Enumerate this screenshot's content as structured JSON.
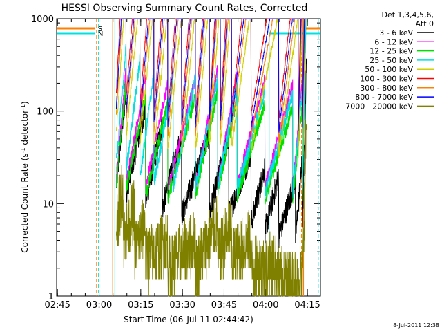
{
  "chart_data": {
    "type": "line",
    "title": "HESSI Observing Summary Count Rates, Corrected",
    "xlabel": "Start Time (06-Jul-11 02:44:42)",
    "ylabel_main": "Corrected Count Rate (s",
    "ylabel_sup1": "-1",
    "ylabel_mid": " detector",
    "ylabel_sup2": "-1",
    "ylabel_end": ")",
    "y_scale": "log",
    "ylim": [
      1,
      1000
    ],
    "xlim_minutes": [
      0,
      95
    ],
    "x_tick_labels": [
      "02:45",
      "03:00",
      "03:15",
      "03:30",
      "03:45",
      "04:00",
      "04:15"
    ],
    "x_tick_minutes": [
      0.3,
      15.3,
      30.3,
      45.3,
      60.3,
      75.3,
      90.3
    ],
    "y_tick_labels": [
      "1",
      "10",
      "100",
      "1000"
    ],
    "y_tick_values": [
      1,
      10,
      100,
      1000
    ],
    "legend_header": [
      "Det 1,3,4,5,6,",
      "Att 0"
    ],
    "legend_position": "right",
    "flags": [
      {
        "label": "S",
        "color": "#ff8000"
      },
      {
        "label": "N",
        "color": "#00e0e0"
      }
    ],
    "series": [
      {
        "name": "3 - 6 keV",
        "color": "#000000",
        "key": [
          17,
          14,
          11,
          9,
          7.5,
          7.5,
          7,
          5,
          4.2,
          4.2
        ],
        "profile": [
          [
            21.5,
            16
          ],
          [
            25,
            13
          ],
          [
            32,
            10.5
          ],
          [
            38,
            8.5
          ],
          [
            45,
            7.5
          ],
          [
            55,
            7.5
          ],
          [
            62,
            7.5
          ],
          [
            70,
            6
          ],
          [
            75,
            5
          ],
          [
            80,
            4.5
          ],
          [
            86,
            4.3
          ],
          [
            88.5,
            5.5
          ],
          [
            90,
            20
          ]
        ],
        "noise": 0.14
      },
      {
        "name": "6 - 12 keV",
        "color": "#ff00ff",
        "profile": [
          [
            21.5,
            20
          ],
          [
            25,
            17
          ],
          [
            32,
            15
          ],
          [
            40,
            14
          ],
          [
            50,
            15
          ],
          [
            58,
            17
          ],
          [
            65,
            16
          ],
          [
            75,
            15
          ],
          [
            85,
            14
          ],
          [
            88.5,
            15
          ],
          [
            90,
            50
          ]
        ],
        "noise": 0.07
      },
      {
        "name": "12 - 25 keV",
        "color": "#00e000",
        "profile": [
          [
            21.5,
            17
          ],
          [
            25,
            14
          ],
          [
            32,
            12
          ],
          [
            40,
            11
          ],
          [
            50,
            12
          ],
          [
            58,
            13
          ],
          [
            65,
            12
          ],
          [
            75,
            11
          ],
          [
            85,
            10.5
          ],
          [
            88.5,
            11
          ],
          [
            90,
            45
          ]
        ],
        "noise": 0.08
      },
      {
        "name": "25 - 50 keV",
        "color": "#00e0e0",
        "profile": [
          [
            21.5,
            28
          ],
          [
            25,
            22
          ],
          [
            30,
            19
          ],
          [
            35,
            16
          ],
          [
            42,
            15
          ],
          [
            50,
            15
          ],
          [
            58,
            15
          ],
          [
            65,
            14
          ],
          [
            75,
            13
          ],
          [
            85,
            12.5
          ],
          [
            88.5,
            13
          ],
          [
            90,
            50
          ]
        ],
        "noise": 0.08
      },
      {
        "name": "50 - 100 keV",
        "color": "#d0d000",
        "profile": [
          [
            21.5,
            58
          ],
          [
            25,
            50
          ],
          [
            30,
            43
          ],
          [
            35,
            38
          ],
          [
            40,
            35
          ],
          [
            45,
            34
          ],
          [
            50,
            36
          ],
          [
            55,
            40
          ],
          [
            59,
            42
          ],
          [
            63,
            40
          ],
          [
            70,
            37
          ],
          [
            80,
            34
          ],
          [
            87,
            33
          ],
          [
            88.5,
            34
          ],
          [
            90,
            80
          ]
        ],
        "noise": 0.045
      },
      {
        "name": "100 - 300 keV",
        "color": "#ff0000",
        "profile": [
          [
            21.5,
            160
          ],
          [
            25,
            130
          ],
          [
            30,
            110
          ],
          [
            35,
            95
          ],
          [
            40,
            88
          ],
          [
            45,
            86
          ],
          [
            50,
            90
          ],
          [
            55,
            100
          ],
          [
            59,
            105
          ],
          [
            63,
            100
          ],
          [
            70,
            90
          ],
          [
            80,
            80
          ],
          [
            87,
            78
          ],
          [
            88.5,
            90
          ],
          [
            90,
            170
          ]
        ],
        "noise": 0.03
      },
      {
        "name": "300 - 800 keV",
        "color": "#ff8000",
        "profile": [
          [
            21.5,
            90
          ],
          [
            25,
            75
          ],
          [
            30,
            63
          ],
          [
            35,
            55
          ],
          [
            40,
            51
          ],
          [
            45,
            51
          ],
          [
            50,
            54
          ],
          [
            55,
            60
          ],
          [
            59,
            63
          ],
          [
            63,
            60
          ],
          [
            70,
            53
          ],
          [
            80,
            47
          ],
          [
            87,
            45
          ],
          [
            88.5,
            48
          ],
          [
            90,
            110
          ]
        ],
        "noise": 0.03
      },
      {
        "name": "800 - 7000 keV",
        "color": "#0000ff",
        "profile": [
          [
            21.5,
            110
          ],
          [
            25,
            93
          ],
          [
            30,
            80
          ],
          [
            35,
            70
          ],
          [
            40,
            66
          ],
          [
            45,
            66
          ],
          [
            50,
            70
          ],
          [
            55,
            77
          ],
          [
            59,
            80
          ],
          [
            63,
            77
          ],
          [
            70,
            68
          ],
          [
            80,
            60
          ],
          [
            87,
            58
          ],
          [
            88.5,
            63
          ],
          [
            90,
            130
          ]
        ],
        "noise": 0.025
      },
      {
        "name": "7000 - 20000 keV",
        "color": "#808000",
        "profile": [
          [
            21.5,
            6
          ],
          [
            24,
            4
          ],
          [
            28,
            3
          ],
          [
            32,
            2.5
          ],
          [
            40,
            2
          ],
          [
            50,
            2
          ],
          [
            58,
            2.5
          ],
          [
            63,
            2.5
          ],
          [
            70,
            2
          ],
          [
            80,
            1.5
          ],
          [
            86,
            1.2
          ],
          [
            88.5,
            1.3
          ],
          [
            90,
            10
          ]
        ],
        "noise": 0.35
      }
    ],
    "vlines": [
      {
        "minute": 21.0,
        "color": "#00e0e0",
        "style": "solid"
      },
      {
        "minute": 20.2,
        "color": "#ff8000",
        "style": "solid"
      },
      {
        "minute": 14.4,
        "color": "#ff8000",
        "style": "dashed"
      },
      {
        "minute": 15.1,
        "color": "#00e0e0",
        "style": "dashed"
      },
      {
        "minute": 76.5,
        "color": "#00e0e0",
        "style": "solid"
      },
      {
        "minute": 88.9,
        "color": "#ff8000",
        "style": "solid"
      },
      {
        "minute": 88.2,
        "color": "#ff8000",
        "style": "dashed"
      },
      {
        "minute": 94.2,
        "color": "#00e0e0",
        "style": "dashed"
      }
    ]
  },
  "timestamp": "8-Jul-2011 12:38"
}
